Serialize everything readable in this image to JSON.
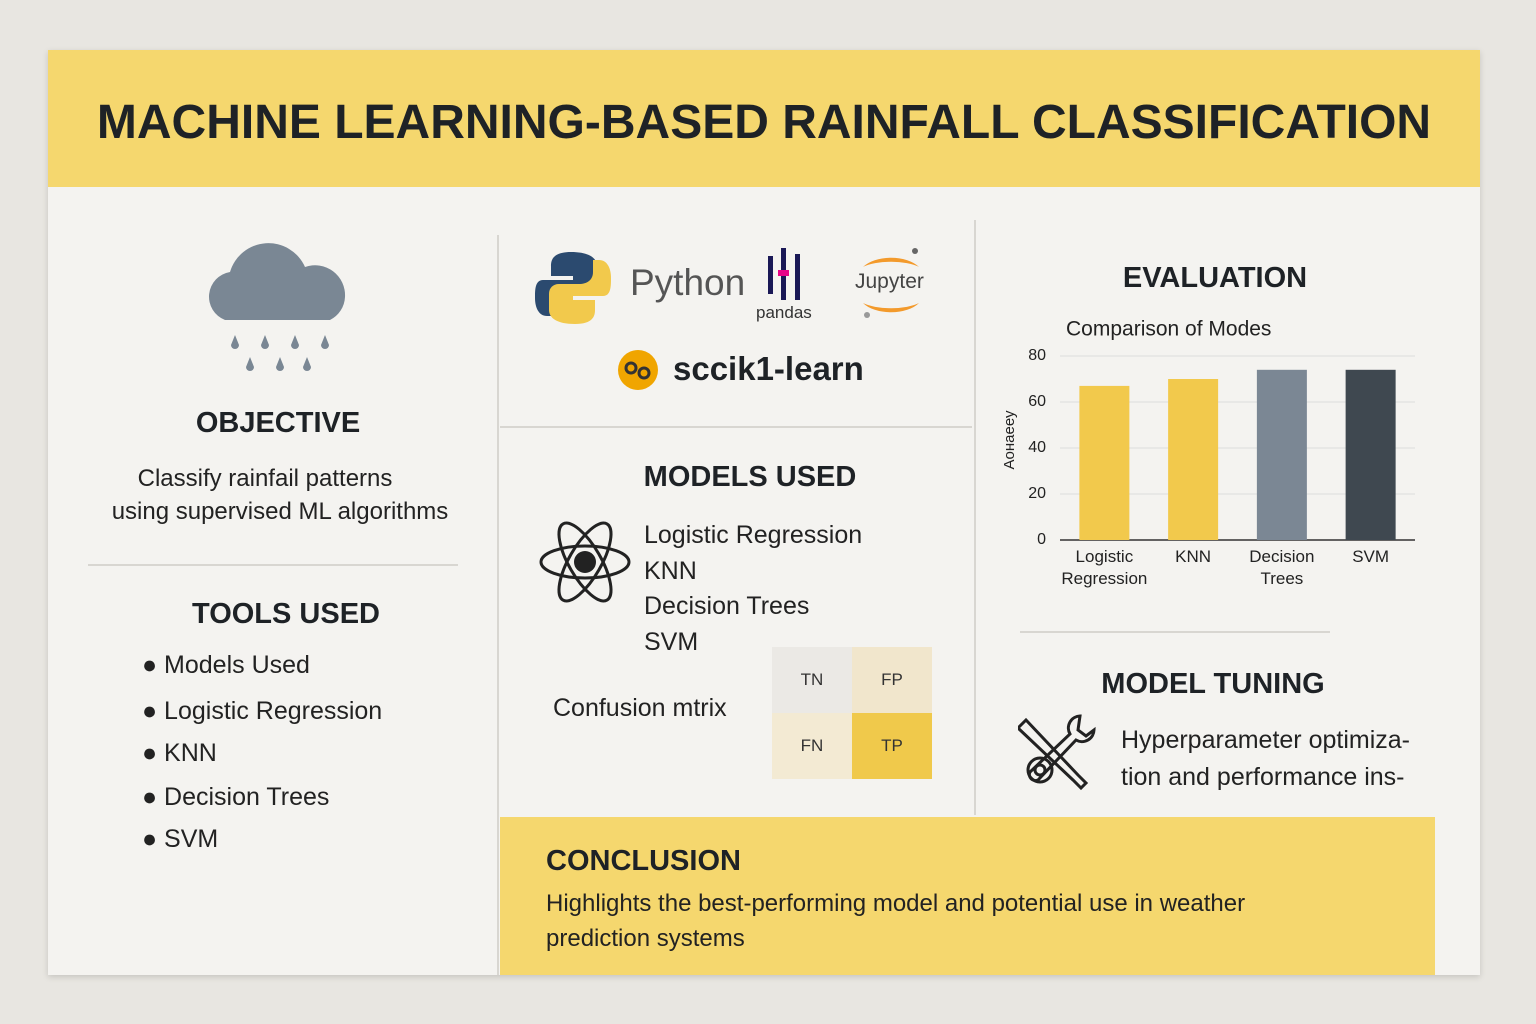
{
  "header": {
    "title": "MACHINE LEARNING-BASED RAINFALL CLASSIFICATION"
  },
  "objective": {
    "heading": "OBJECTIVE",
    "lines": [
      "Classify rainfail patterns",
      "using supervised ML algorithms"
    ]
  },
  "tools": {
    "heading": "TOOLS USED",
    "items": [
      "Models Used",
      "Logistic Regression",
      "KNN",
      "Decision Trees",
      "SVM"
    ]
  },
  "logos": {
    "python": "Python",
    "pandas": "pandas",
    "jupyter": "Jupyter",
    "scikit": "sccik1-learn"
  },
  "models": {
    "heading": "MODELS USED",
    "items": [
      "Logistic Regression",
      "KNN",
      "Decision Trees",
      "SVM"
    ]
  },
  "confusion": {
    "label": "Confusion mtrix",
    "cells": [
      "TN",
      "FP",
      "FN",
      "TP"
    ]
  },
  "evaluation": {
    "heading": "EVALUATION"
  },
  "chart_data": {
    "type": "bar",
    "title": "Comparison of Modes",
    "y_label": "Аонаееу",
    "categories": [
      "Logistic Regression",
      "KNN",
      "Decision Trees",
      "SVM"
    ],
    "values": [
      67,
      70,
      74,
      74
    ],
    "colors": [
      "#f2c94c",
      "#f2c94c",
      "#7b8794",
      "#3f4850"
    ],
    "ylim": [
      0,
      80
    ],
    "yticks": [
      0,
      20,
      40,
      60,
      80
    ],
    "grid": true
  },
  "tuning": {
    "heading": "MODEL TUNING",
    "lines": [
      "Hyperparameter optimiza-",
      "tion and performance ins-"
    ]
  },
  "conclusion": {
    "heading": "CONCLUSION",
    "lines": [
      "Highlights the best-performing model and potential use in weather",
      "prediction systems"
    ]
  }
}
